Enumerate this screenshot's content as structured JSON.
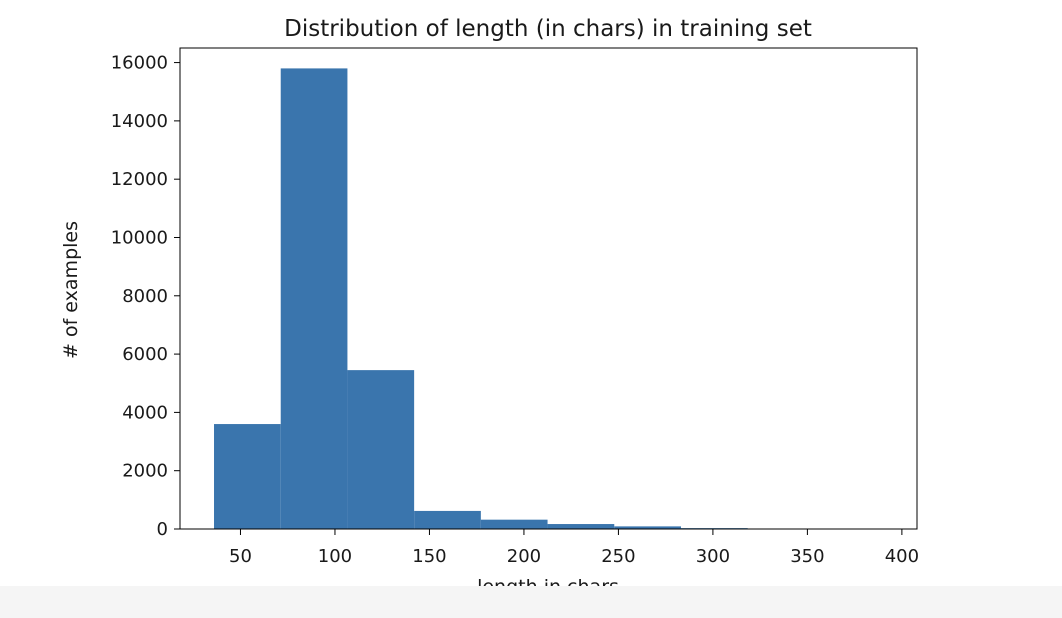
{
  "chart_data": {
    "type": "bar",
    "title": "Distribution of length (in chars) in training set",
    "xlabel": "length in chars",
    "ylabel": "# of examples",
    "xlim": [
      18,
      408
    ],
    "ylim": [
      0,
      16500
    ],
    "xticks": [
      50,
      100,
      150,
      200,
      250,
      300,
      350,
      400
    ],
    "yticks": [
      0,
      2000,
      4000,
      6000,
      8000,
      10000,
      12000,
      14000,
      16000
    ],
    "bin_edges": [
      36,
      71.3,
      106.6,
      141.9,
      177.2,
      212.5,
      247.8,
      283.1,
      318.4,
      353.7,
      389
    ],
    "values": [
      3600,
      15800,
      5450,
      620,
      320,
      170,
      90,
      30,
      15,
      10
    ],
    "grid": false,
    "legend": "none",
    "bar_color": "#3a75ad"
  }
}
